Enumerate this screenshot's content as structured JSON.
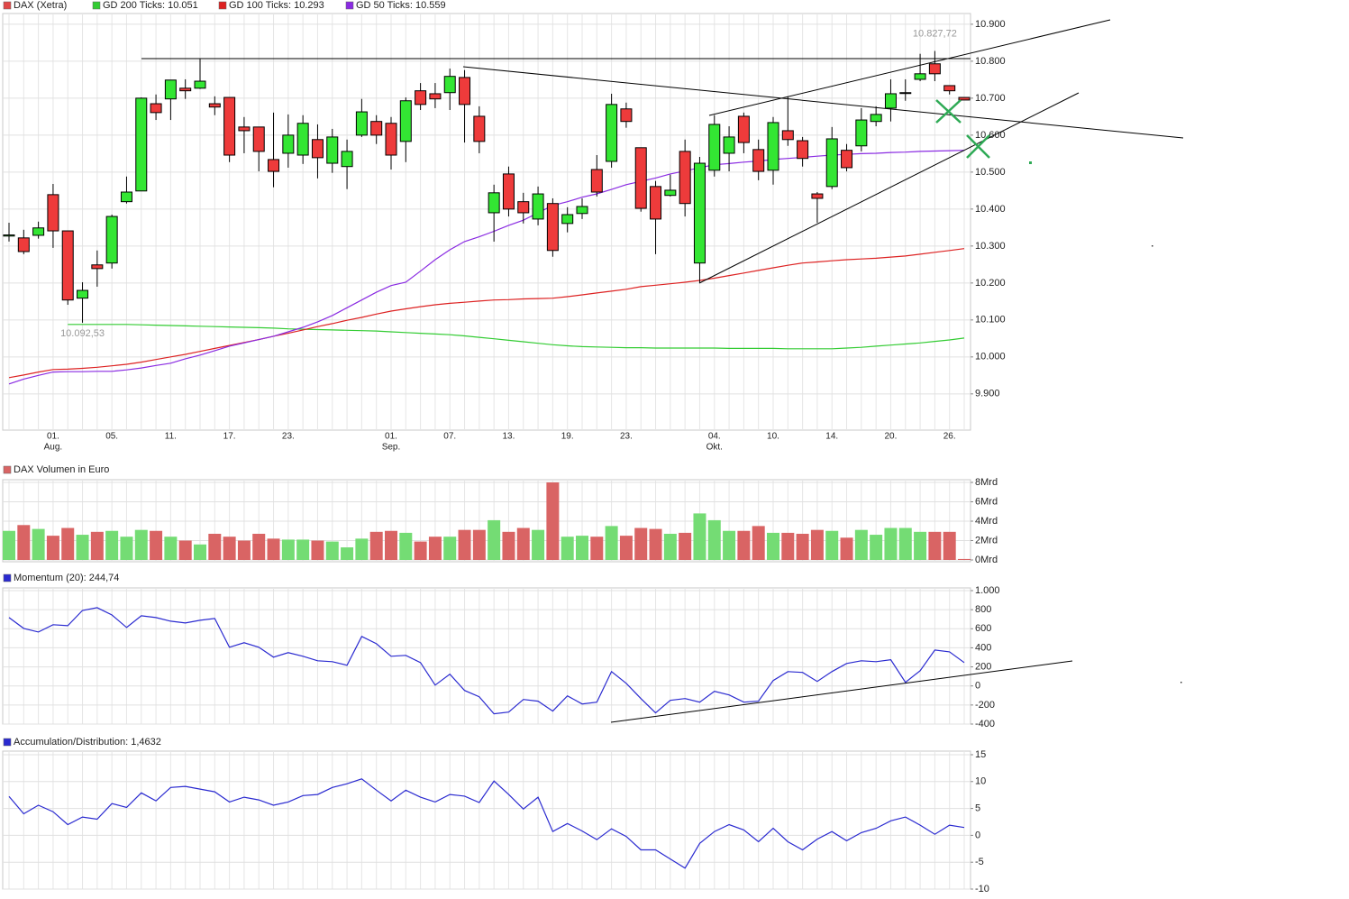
{
  "chart_data": [
    {
      "type": "candlestick",
      "categories": [
        null,
        null,
        null,
        "01.",
        null,
        null,
        null,
        "05.",
        null,
        null,
        null,
        "11.",
        null,
        null,
        null,
        "17.",
        null,
        null,
        null,
        "23.",
        null,
        null,
        null,
        null,
        null,
        null,
        "01.",
        null,
        null,
        null,
        "07.",
        null,
        null,
        null,
        "13.",
        null,
        null,
        null,
        "19.",
        null,
        null,
        null,
        "23.",
        null,
        null,
        null,
        null,
        null,
        "04.",
        null,
        null,
        null,
        "10.",
        null,
        null,
        null,
        "14.",
        null,
        null,
        null,
        "20.",
        null,
        null,
        null,
        "26.",
        null
      ],
      "category_months": [
        null,
        null,
        null,
        "Aug.",
        null,
        null,
        null,
        null,
        null,
        null,
        null,
        null,
        null,
        null,
        null,
        null,
        null,
        null,
        null,
        null,
        null,
        null,
        null,
        null,
        null,
        null,
        "Sep.",
        null,
        null,
        null,
        null,
        null,
        null,
        null,
        null,
        null,
        null,
        null,
        null,
        null,
        null,
        null,
        null,
        null,
        null,
        null,
        null,
        null,
        "Okt.",
        null,
        null,
        null,
        null,
        null,
        null,
        null,
        null,
        null,
        null,
        null,
        null,
        null,
        null,
        null,
        null,
        null
      ],
      "up_color": "#33e633",
      "down_color": "#ee3b3b",
      "series": [
        {
          "name": "DAX (Xetra)",
          "color": "#e04848",
          "open": [
            10327,
            10322,
            10329,
            10439,
            10341,
            10159,
            10249,
            10254,
            10420,
            10449,
            10685,
            10698,
            10727,
            10727,
            10685,
            10702,
            10622,
            10622,
            10534,
            10551,
            10546,
            10588,
            10524,
            10515,
            10600,
            10637,
            10632,
            10583,
            10720,
            10712,
            10715,
            10756,
            10651,
            10390,
            10495,
            10420,
            10373,
            10415,
            10361,
            10388,
            10507,
            10529,
            10671,
            10566,
            10461,
            10437,
            10556,
            10254,
            10505,
            10551,
            10651,
            10561,
            10505,
            10612,
            10585,
            10441,
            10461,
            10559,
            10571,
            10637,
            10673,
            10714,
            10751,
            10793,
            10734,
            10702
          ],
          "high": [
            10363,
            10344,
            10366,
            10468,
            10341,
            10202,
            10288,
            10385,
            10488,
            10702,
            10710,
            10749,
            10751,
            10807,
            10705,
            10702,
            10649,
            10622,
            10661,
            10656,
            10654,
            10629,
            10617,
            10588,
            10698,
            10654,
            10649,
            10702,
            10741,
            10741,
            10780,
            10776,
            10678,
            10466,
            10515,
            10444,
            10461,
            10429,
            10405,
            10429,
            10546,
            10712,
            10688,
            10566,
            10476,
            10493,
            10588,
            10541,
            10654,
            10624,
            10661,
            10588,
            10649,
            10705,
            10595,
            10446,
            10622,
            10576,
            10673,
            10678,
            10751,
            10751,
            10820,
            10827.72,
            10734,
            10702
          ],
          "low": [
            10312,
            10278,
            10320,
            10295,
            10141,
            10092.53,
            10190,
            10239,
            10415,
            10449,
            10641,
            10641,
            10698,
            10725,
            10654,
            10527,
            10551,
            10502,
            10459,
            10512,
            10522,
            10483,
            10498,
            10454,
            10595,
            10576,
            10507,
            10527,
            10668,
            10673,
            10668,
            10580,
            10551,
            10312,
            10380,
            10361,
            10356,
            10271,
            10337,
            10373,
            10434,
            10512,
            10620,
            10393,
            10278,
            10434,
            10380,
            10200,
            10488,
            10502,
            10551,
            10478,
            10466,
            10571,
            10515,
            10363,
            10454,
            10502,
            10556,
            10624,
            10637,
            10693,
            10746,
            10746,
            10710,
            10695
          ],
          "close": [
            10330,
            10285,
            10349,
            10341,
            10154,
            10180,
            10239,
            10380,
            10446,
            10700,
            10661,
            10749,
            10720,
            10746,
            10676,
            10546,
            10612,
            10556,
            10502,
            10600,
            10632,
            10539,
            10595,
            10556,
            10663,
            10600,
            10546,
            10693,
            10683,
            10698,
            10759,
            10683,
            10583,
            10444,
            10400,
            10390,
            10441,
            10288,
            10385,
            10407,
            10446,
            10683,
            10637,
            10402,
            10373,
            10451,
            10415,
            10524,
            10629,
            10595,
            10580,
            10502,
            10634,
            10588,
            10537,
            10429,
            10590,
            10512,
            10641,
            10656,
            10712,
            10715,
            10766,
            10766,
            10720,
            10695
          ]
        },
        {
          "name": "GD 200 Ticks: 10.051",
          "type": "line",
          "color": "#33cc33",
          "values": [
            null,
            null,
            null,
            null,
            10088,
            10088,
            10088,
            10088,
            10088,
            10087,
            10086,
            10085,
            10084,
            10083,
            10082,
            10081,
            10080,
            10079,
            10078,
            10076,
            10075,
            10074,
            10073,
            10072,
            10071,
            10070,
            10068,
            10066,
            10064,
            10062,
            10060,
            10057,
            10053,
            10049,
            10045,
            10041,
            10037,
            10033,
            10030,
            10028,
            10027,
            10026,
            10025,
            10025,
            10024,
            10024,
            10024,
            10024,
            10024,
            10023,
            10023,
            10023,
            10023,
            10022,
            10022,
            10022,
            10022,
            10024,
            10026,
            10029,
            10032,
            10035,
            10038,
            10042,
            10046,
            10051
          ]
        },
        {
          "name": "GD 100 Ticks: 10.293",
          "type": "line",
          "color": "#dd2222",
          "values": [
            9944,
            9951,
            9959,
            9966,
            9967,
            9969,
            9972,
            9976,
            9980,
            9986,
            9993,
            10000,
            10007,
            10015,
            10023,
            10031,
            10039,
            10047,
            10056,
            10064,
            10073,
            10082,
            10090,
            10099,
            10107,
            10116,
            10124,
            10130,
            10136,
            10141,
            10145,
            10148,
            10151,
            10154,
            10155,
            10157,
            10158,
            10159,
            10163,
            10168,
            10173,
            10178,
            10183,
            10190,
            10194,
            10198,
            10202,
            10207,
            10213,
            10220,
            10227,
            10234,
            10241,
            10248,
            10254,
            10257,
            10260,
            10263,
            10265,
            10267,
            10270,
            10273,
            10278,
            10283,
            10288,
            10293
          ]
        },
        {
          "name": "GD 50 Ticks: 10.559",
          "type": "line",
          "color": "#8a2be2",
          "values": [
            9927,
            9940,
            9950,
            9959,
            9960,
            9960,
            9961,
            9961,
            9965,
            9970,
            9977,
            9983,
            9995,
            10005,
            10017,
            10029,
            10038,
            10047,
            10056,
            10068,
            10080,
            10095,
            10112,
            10133,
            10154,
            10175,
            10193,
            10202,
            10232,
            10263,
            10290,
            10312,
            10325,
            10340,
            10356,
            10370,
            10390,
            10410,
            10420,
            10432,
            10441,
            10453,
            10466,
            10475,
            10484,
            10495,
            10503,
            10512,
            10520,
            10523,
            10527,
            10530,
            10534,
            10537,
            10540,
            10543,
            10546,
            10548,
            10550,
            10551,
            10553,
            10554,
            10556,
            10557,
            10558,
            10559
          ]
        }
      ],
      "annotations": [
        {
          "label": "10.827,72",
          "value": 10827.72
        },
        {
          "label": "10.092,53",
          "value": 10092.53
        }
      ],
      "ylim": [
        9802,
        10929
      ],
      "yticks": [
        {
          "value": 9900,
          "label": "9.900"
        },
        {
          "value": 10000,
          "label": "10.000"
        },
        {
          "value": 10100,
          "label": "10.100"
        },
        {
          "value": 10200,
          "label": "10.200"
        },
        {
          "value": 10300,
          "label": "10.300"
        },
        {
          "value": 10400,
          "label": "10.400"
        },
        {
          "value": 10500,
          "label": "10.500"
        },
        {
          "value": 10600,
          "label": "10.600"
        },
        {
          "value": 10700,
          "label": "10.700"
        },
        {
          "value": 10800,
          "label": "10.800"
        },
        {
          "value": 10900,
          "label": "10.900"
        }
      ],
      "grid": true
    },
    {
      "type": "bar",
      "up_color": "#74dc74",
      "down_color": "#d96464",
      "series": [
        {
          "name": "DAX Volumen in Euro",
          "color": "#d96464",
          "values": [
            3.0,
            3.6,
            3.2,
            2.5,
            3.3,
            2.6,
            2.9,
            3.0,
            2.4,
            3.1,
            3.0,
            2.4,
            2.0,
            1.6,
            2.7,
            2.4,
            2.0,
            2.7,
            2.2,
            2.1,
            2.1,
            2.0,
            1.9,
            1.3,
            2.2,
            2.9,
            3.0,
            2.8,
            1.9,
            2.4,
            2.4,
            3.1,
            3.1,
            4.1,
            2.9,
            3.3,
            3.1,
            8.0,
            2.4,
            2.5,
            2.4,
            3.5,
            2.5,
            3.3,
            3.2,
            2.7,
            2.8,
            4.8,
            4.1,
            3.0,
            3.0,
            3.5,
            2.8,
            2.8,
            2.7,
            3.1,
            3.0,
            2.3,
            3.1,
            2.6,
            3.3,
            3.3,
            2.9,
            2.9,
            2.9,
            0.1
          ]
        }
      ],
      "ylim": [
        0,
        8
      ],
      "yticks": [
        {
          "value": 0,
          "label": "0Mrd"
        },
        {
          "value": 2,
          "label": "2Mrd"
        },
        {
          "value": 4,
          "label": "4Mrd"
        },
        {
          "value": 6,
          "label": "6Mrd"
        },
        {
          "value": 8,
          "label": "8Mrd"
        }
      ],
      "grid": true
    },
    {
      "type": "line",
      "series": [
        {
          "name": "Momentum (20): 244,74",
          "color": "#2a2ad0",
          "values": [
            717,
            604,
            566,
            642,
            632,
            792,
            821,
            745,
            613,
            736,
            717,
            679,
            660,
            689,
            708,
            406,
            453,
            406,
            302,
            349,
            311,
            264,
            255,
            217,
            519,
            443,
            311,
            321,
            245,
            9,
            123,
            -47,
            -113,
            -292,
            -274,
            -142,
            -160,
            -264,
            -104,
            -189,
            -170,
            151,
            28,
            -132,
            -283,
            -151,
            -132,
            -170,
            -57,
            -94,
            -170,
            -160,
            57,
            151,
            142,
            47,
            151,
            236,
            264,
            255,
            274,
            38,
            160,
            377,
            358,
            244.74
          ]
        }
      ],
      "ylim": [
        -400,
        1000
      ],
      "yticks": [
        -400,
        -200,
        0,
        200,
        400,
        600,
        800,
        {
          "value": 1000,
          "label": "1.000"
        }
      ],
      "grid": true
    },
    {
      "type": "line",
      "series": [
        {
          "name": "Accumulation/Distribution: 1,4632",
          "color": "#2a2ad0",
          "values": [
            7.25,
            4.0,
            5.6,
            4.4,
            2.0,
            3.4,
            3.0,
            5.9,
            5.2,
            7.9,
            6.4,
            8.9,
            9.1,
            8.6,
            8.1,
            6.2,
            7.1,
            6.6,
            5.6,
            6.2,
            7.4,
            7.6,
            8.9,
            9.6,
            10.5,
            8.4,
            6.4,
            8.4,
            7.1,
            6.2,
            7.6,
            7.3,
            6.1,
            10.1,
            7.6,
            4.9,
            7.1,
            0.7,
            2.2,
            0.8,
            -0.8,
            1.2,
            -0.2,
            -2.7,
            -2.7,
            -4.4,
            -6.1,
            -1.5,
            0.7,
            2.0,
            1.0,
            -1.2,
            1.3,
            -1.2,
            -2.7,
            -0.7,
            0.7,
            -1.0,
            0.5,
            1.3,
            2.7,
            3.4,
            1.9,
            0.2,
            1.9,
            1.4632
          ]
        }
      ],
      "ylim": [
        -10,
        15.5
      ],
      "yticks": [
        -10,
        -5,
        0,
        5,
        10,
        15
      ],
      "grid": true
    }
  ]
}
